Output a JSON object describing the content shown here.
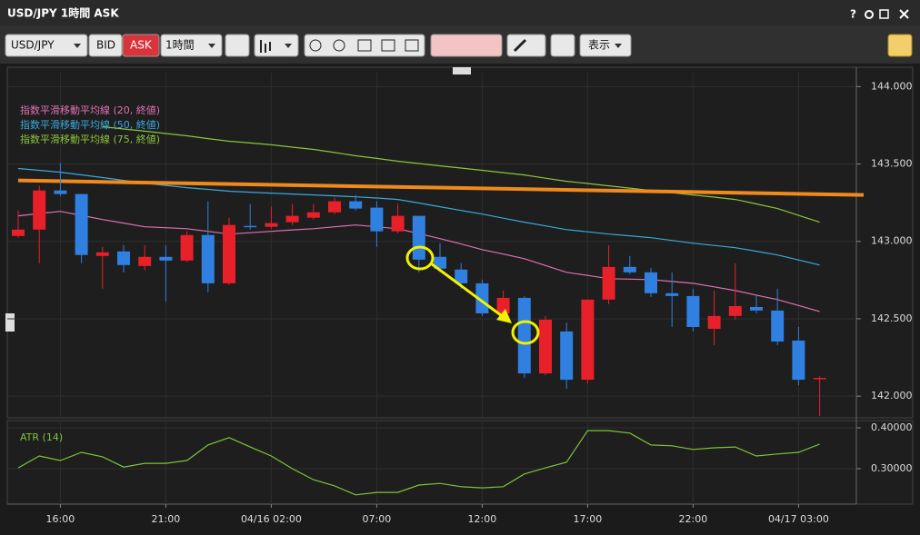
{
  "window": {
    "title": "USD/JPY 1時間 ASK",
    "help": "?"
  },
  "toolbar": {
    "symbol": "USD/JPY",
    "bid": "BID",
    "ask": "ASK",
    "interval": "1時間",
    "view": "表示"
  },
  "chart_data": [
    {
      "type": "candlestick",
      "categories": [
        null,
        null,
        "16:00",
        null,
        null,
        null,
        null,
        "21:00",
        null,
        null,
        null,
        null,
        "04/16 02:00",
        null,
        null,
        null,
        null,
        "07:00",
        null,
        null,
        null,
        null,
        "12:00",
        null,
        null,
        null,
        null,
        "17:00",
        null,
        null,
        null,
        null,
        "22:00",
        null,
        null,
        null,
        null,
        "04/17 03:00",
        null
      ],
      "open": [
        143.035,
        143.076,
        143.329,
        143.306,
        142.906,
        142.935,
        142.841,
        142.9,
        142.876,
        143.041,
        142.729,
        143.1,
        143.094,
        143.124,
        143.153,
        143.188,
        143.259,
        143.218,
        143.065,
        143.165,
        142.9,
        142.818,
        142.729,
        142.535,
        142.635,
        142.147,
        142.418,
        142.106,
        142.624,
        142.835,
        142.8,
        142.665,
        142.647,
        142.435,
        142.518,
        142.576,
        142.553,
        142.359,
        142.112
      ],
      "high": [
        143.2,
        143.359,
        143.506,
        143.306,
        142.965,
        142.976,
        142.976,
        142.976,
        143.065,
        143.259,
        143.153,
        143.241,
        143.224,
        143.241,
        143.241,
        143.282,
        143.3,
        143.259,
        143.241,
        143.165,
        142.988,
        142.859,
        142.753,
        142.682,
        142.647,
        142.518,
        142.476,
        142.624,
        142.976,
        142.906,
        142.829,
        142.8,
        142.694,
        142.682,
        142.859,
        142.653,
        142.694,
        142.447,
        142.129
      ],
      "low": [
        143.024,
        142.859,
        143.294,
        142.859,
        142.694,
        142.8,
        142.812,
        142.612,
        142.865,
        142.671,
        142.718,
        143.076,
        143.082,
        143.106,
        143.141,
        143.176,
        143.2,
        142.965,
        143.053,
        142.8,
        142.8,
        142.694,
        142.518,
        142.506,
        142.118,
        142.135,
        142.047,
        142.082,
        142.594,
        142.788,
        142.641,
        142.447,
        142.418,
        142.329,
        142.494,
        142.535,
        142.329,
        142.071,
        141.871
      ],
      "close": [
        143.076,
        143.329,
        143.306,
        142.912,
        142.929,
        142.847,
        142.9,
        142.876,
        143.041,
        142.729,
        143.106,
        143.094,
        143.118,
        143.165,
        143.188,
        143.259,
        143.212,
        143.065,
        143.165,
        142.882,
        142.824,
        142.729,
        142.535,
        142.635,
        142.147,
        142.494,
        142.106,
        142.624,
        142.835,
        142.8,
        142.665,
        142.647,
        142.447,
        142.518,
        142.582,
        142.553,
        142.353,
        142.106,
        142.118
      ],
      "up_color": "#e8202a",
      "down_color": "#2f80e0",
      "series": [
        {
          "name": "指数平滑移動平均線 (20, 終値)",
          "color": "#e070b0",
          "values": [
            143.165,
            143.18,
            143.194,
            143.168,
            143.141,
            143.118,
            143.094,
            143.088,
            143.082,
            143.065,
            143.047,
            143.056,
            143.065,
            143.074,
            143.082,
            143.094,
            143.106,
            143.094,
            143.082,
            143.05,
            143.018,
            142.983,
            142.947,
            142.918,
            142.888,
            142.844,
            142.8,
            142.78,
            142.759,
            142.756,
            142.753,
            142.741,
            142.729,
            142.706,
            142.682,
            142.653,
            142.624,
            142.586,
            142.547
          ]
        },
        {
          "name": "指数平滑移動平均線 (50, 終値)",
          "color": "#3aa8dc",
          "values": [
            143.471,
            143.459,
            143.447,
            143.43,
            143.412,
            143.394,
            143.376,
            143.362,
            143.347,
            143.336,
            143.324,
            143.318,
            143.312,
            143.306,
            143.3,
            143.294,
            143.288,
            143.28,
            143.271,
            143.248,
            143.224,
            143.2,
            143.176,
            143.15,
            143.124,
            143.1,
            143.076,
            143.062,
            143.047,
            143.036,
            143.024,
            143.006,
            142.988,
            142.974,
            142.959,
            142.936,
            142.912,
            142.88,
            142.847
          ]
        },
        {
          "name": "指数平滑移動平均線 (75, 終値)",
          "color": "#8cc43c",
          "values": [
            null,
            null,
            null,
            null,
            143.741,
            143.726,
            143.712,
            143.697,
            143.682,
            143.664,
            143.647,
            143.636,
            143.624,
            143.609,
            143.594,
            143.574,
            143.553,
            143.536,
            143.518,
            143.503,
            143.488,
            143.474,
            143.459,
            143.444,
            143.429,
            143.408,
            143.388,
            143.374,
            143.359,
            143.344,
            143.329,
            143.314,
            143.3,
            143.286,
            143.271,
            143.242,
            143.212,
            143.168,
            143.124
          ]
        }
      ],
      "trendline": {
        "color": "#f08a1c",
        "values": [
          143.394,
          143.3
        ]
      },
      "ylim": [
        141.86,
        144.09
      ],
      "yticks": [
        {
          "value": 142,
          "label": "142.000"
        },
        {
          "value": 142.5,
          "label": "142.500"
        },
        {
          "value": 143,
          "label": "143.000"
        },
        {
          "value": 143.5,
          "label": "143.500"
        },
        {
          "value": 144,
          "label": "144.000"
        }
      ],
      "grid": true
    },
    {
      "type": "line",
      "series": [
        {
          "name": "ATR (14)",
          "color": "#7cc43a",
          "values": [
            0.302,
            0.331,
            0.32,
            0.34,
            0.329,
            0.304,
            0.313,
            0.313,
            0.32,
            0.358,
            0.376,
            0.353,
            0.331,
            0.3,
            0.273,
            0.258,
            0.236,
            0.242,
            0.242,
            0.26,
            0.264,
            0.256,
            0.253,
            0.256,
            0.287,
            0.302,
            0.316,
            0.393,
            0.393,
            0.387,
            0.358,
            0.356,
            0.347,
            0.351,
            0.353,
            0.331,
            0.336,
            0.34,
            0.36
          ]
        }
      ],
      "ylim": [
        0.2133,
        0.4133
      ],
      "yticks": [
        {
          "value": 0.3,
          "label": "0.30000"
        },
        {
          "value": 0.4,
          "label": "0.40000"
        }
      ],
      "grid": true
    }
  ]
}
